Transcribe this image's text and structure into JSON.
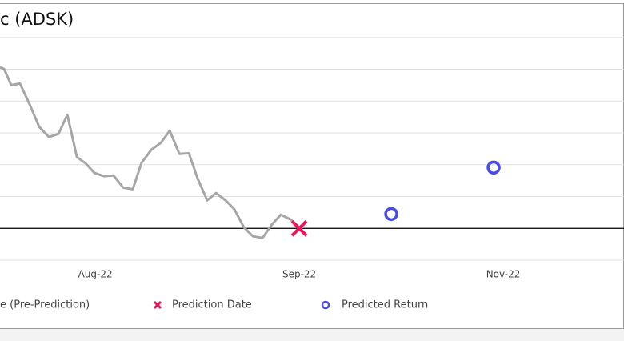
{
  "chart_data": {
    "type": "line",
    "title": "c (ADSK)",
    "xlim": [
      0.533,
      3.592
    ],
    "xticks": [
      {
        "value": 1,
        "label": "Aug-22"
      },
      {
        "value": 2,
        "label": "Sep-22"
      },
      {
        "value": 3,
        "label": "Nov-22"
      }
    ],
    "ylim": [
      -1,
      7
    ],
    "yticks": [
      -1,
      0,
      1,
      2,
      3,
      4,
      5,
      6
    ],
    "grid": true,
    "hline": 0,
    "legend": "bottom",
    "series": [
      {
        "name": "e (Pre-Prediction)",
        "mark": "line",
        "color": "#a6a6a6",
        "x": [
          0.533,
          0.553,
          0.588,
          0.631,
          0.678,
          0.725,
          0.773,
          0.82,
          0.863,
          0.91,
          0.953,
          0.996,
          1.043,
          1.09,
          1.137,
          1.184,
          1.227,
          1.275,
          1.322,
          1.365,
          1.412,
          1.459,
          1.502,
          1.549,
          1.592,
          1.639,
          1.682,
          1.729,
          1.773,
          1.82,
          1.867,
          1.91,
          1.957,
          2.0
        ],
        "values": [
          5.06,
          5.01,
          4.5,
          4.55,
          3.9,
          3.19,
          2.87,
          2.97,
          3.57,
          2.24,
          2.04,
          1.74,
          1.64,
          1.66,
          1.28,
          1.23,
          2.06,
          2.47,
          2.69,
          3.07,
          2.34,
          2.36,
          1.56,
          0.88,
          1.11,
          0.88,
          0.6,
          0.03,
          -0.25,
          -0.3,
          0.13,
          0.43,
          0.28,
          0
        ]
      },
      {
        "name": "Prediction Date",
        "mark": "cross",
        "color": "#e8175d",
        "x": [
          2.0
        ],
        "values": [
          0
        ]
      },
      {
        "name": "Predicted Return",
        "mark": "circle",
        "color": "#4b4be8",
        "x": [
          2.451,
          2.953
        ],
        "values": [
          0.45,
          1.91
        ]
      }
    ]
  }
}
